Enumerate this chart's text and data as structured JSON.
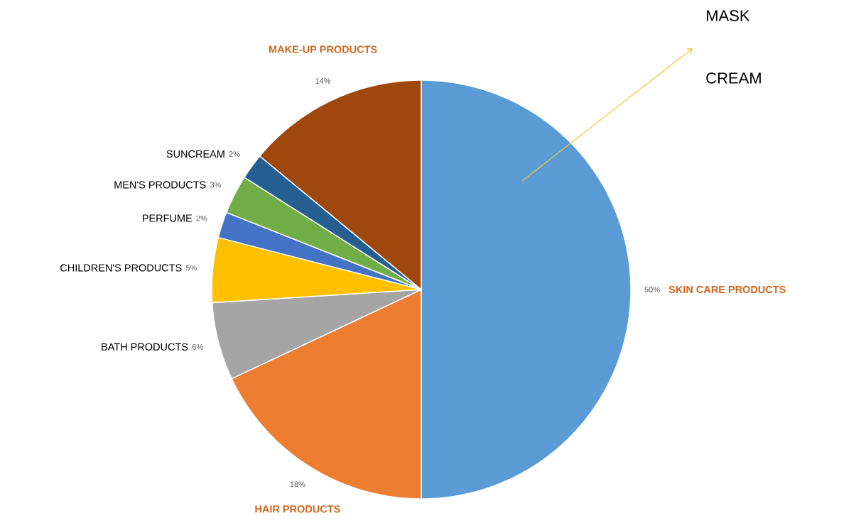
{
  "chart_data": {
    "type": "pie",
    "categories": [
      "SKIN CARE PRODUCTS",
      "HAIR PRODUCTS",
      "BATH PRODUCTS",
      "CHILDREN'S PRODUCTS",
      "PERFUME",
      "MEN'S PRODUCTS",
      "SUNCREAM",
      "MAKE-UP PRODUCTS"
    ],
    "values": [
      50,
      18,
      6,
      5,
      2,
      3,
      2,
      14
    ],
    "value_labels": [
      "50%",
      "18%",
      "6%",
      "5%",
      "2%",
      "3%",
      "2%",
      "14%"
    ],
    "colors": [
      "#5b9bd5",
      "#ed7d31",
      "#a5a5a5",
      "#ffc000",
      "#4472c4",
      "#70ad47",
      "#255e91",
      "#9e480e"
    ],
    "annotations": [
      "MASK",
      "CREAM"
    ]
  }
}
